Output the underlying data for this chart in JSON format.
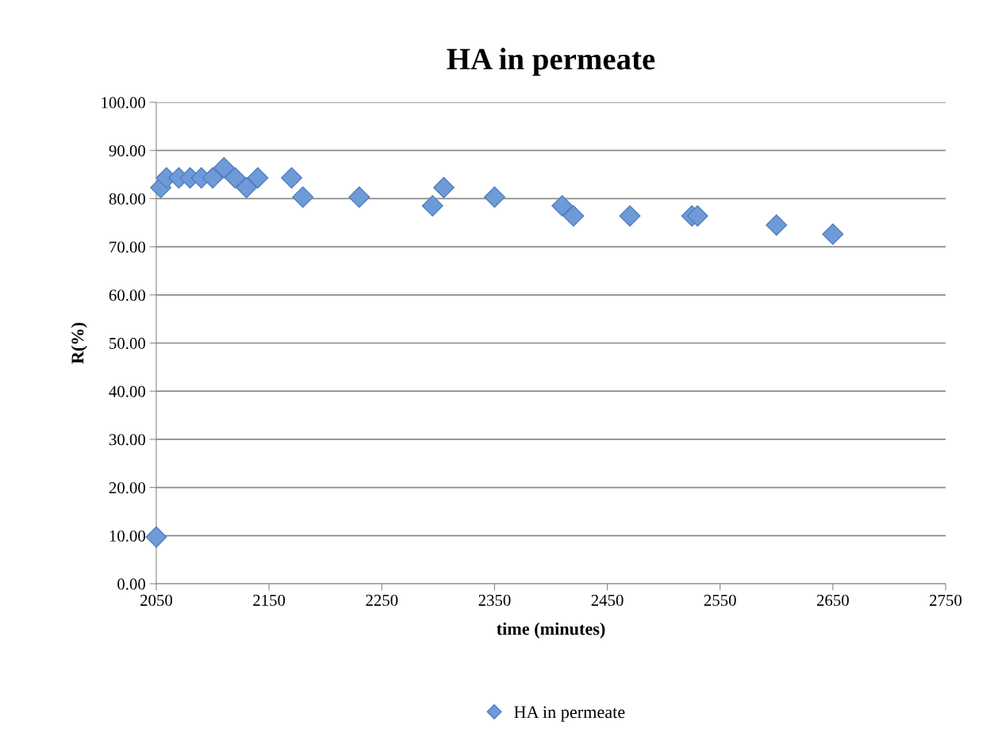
{
  "chart_data": {
    "type": "scatter",
    "title": "HA in permeate",
    "xlabel": "time (minutes)",
    "ylabel": "R(%)",
    "xlim": [
      2050,
      2750
    ],
    "xticks": [
      2050,
      2150,
      2250,
      2350,
      2450,
      2550,
      2650,
      2750
    ],
    "ylim": [
      0,
      100
    ],
    "yticks": [
      {
        "value": 0,
        "label": "0.00"
      },
      {
        "value": 10,
        "label": "10.00"
      },
      {
        "value": 20,
        "label": "20.00"
      },
      {
        "value": 30,
        "label": "30.00"
      },
      {
        "value": 40,
        "label": "40.00"
      },
      {
        "value": 50,
        "label": "50.00"
      },
      {
        "value": 60,
        "label": "60.00"
      },
      {
        "value": 70,
        "label": "70.00"
      },
      {
        "value": 80,
        "label": "80.00"
      },
      {
        "value": 90,
        "label": "90.00"
      },
      {
        "value": 100,
        "label": "100.00"
      }
    ],
    "grid": "y",
    "legend": "bottom",
    "marker": "diamond",
    "series": [
      {
        "name": "HA in permeate",
        "color": "#6f9ad8",
        "x": [
          2050,
          2054,
          2059,
          2070,
          2080,
          2090,
          2100,
          2110,
          2120,
          2130,
          2140,
          2170,
          2180,
          2230,
          2295,
          2305,
          2350,
          2410,
          2420,
          2470,
          2525,
          2530,
          2600,
          2650
        ],
        "values": [
          9.7,
          82.3,
          84.3,
          84.3,
          84.3,
          84.3,
          84.3,
          86.4,
          84.3,
          82.3,
          84.3,
          84.3,
          80.3,
          80.3,
          78.5,
          82.3,
          80.3,
          78.5,
          76.4,
          76.4,
          76.4,
          76.4,
          74.5,
          72.6
        ]
      }
    ]
  }
}
